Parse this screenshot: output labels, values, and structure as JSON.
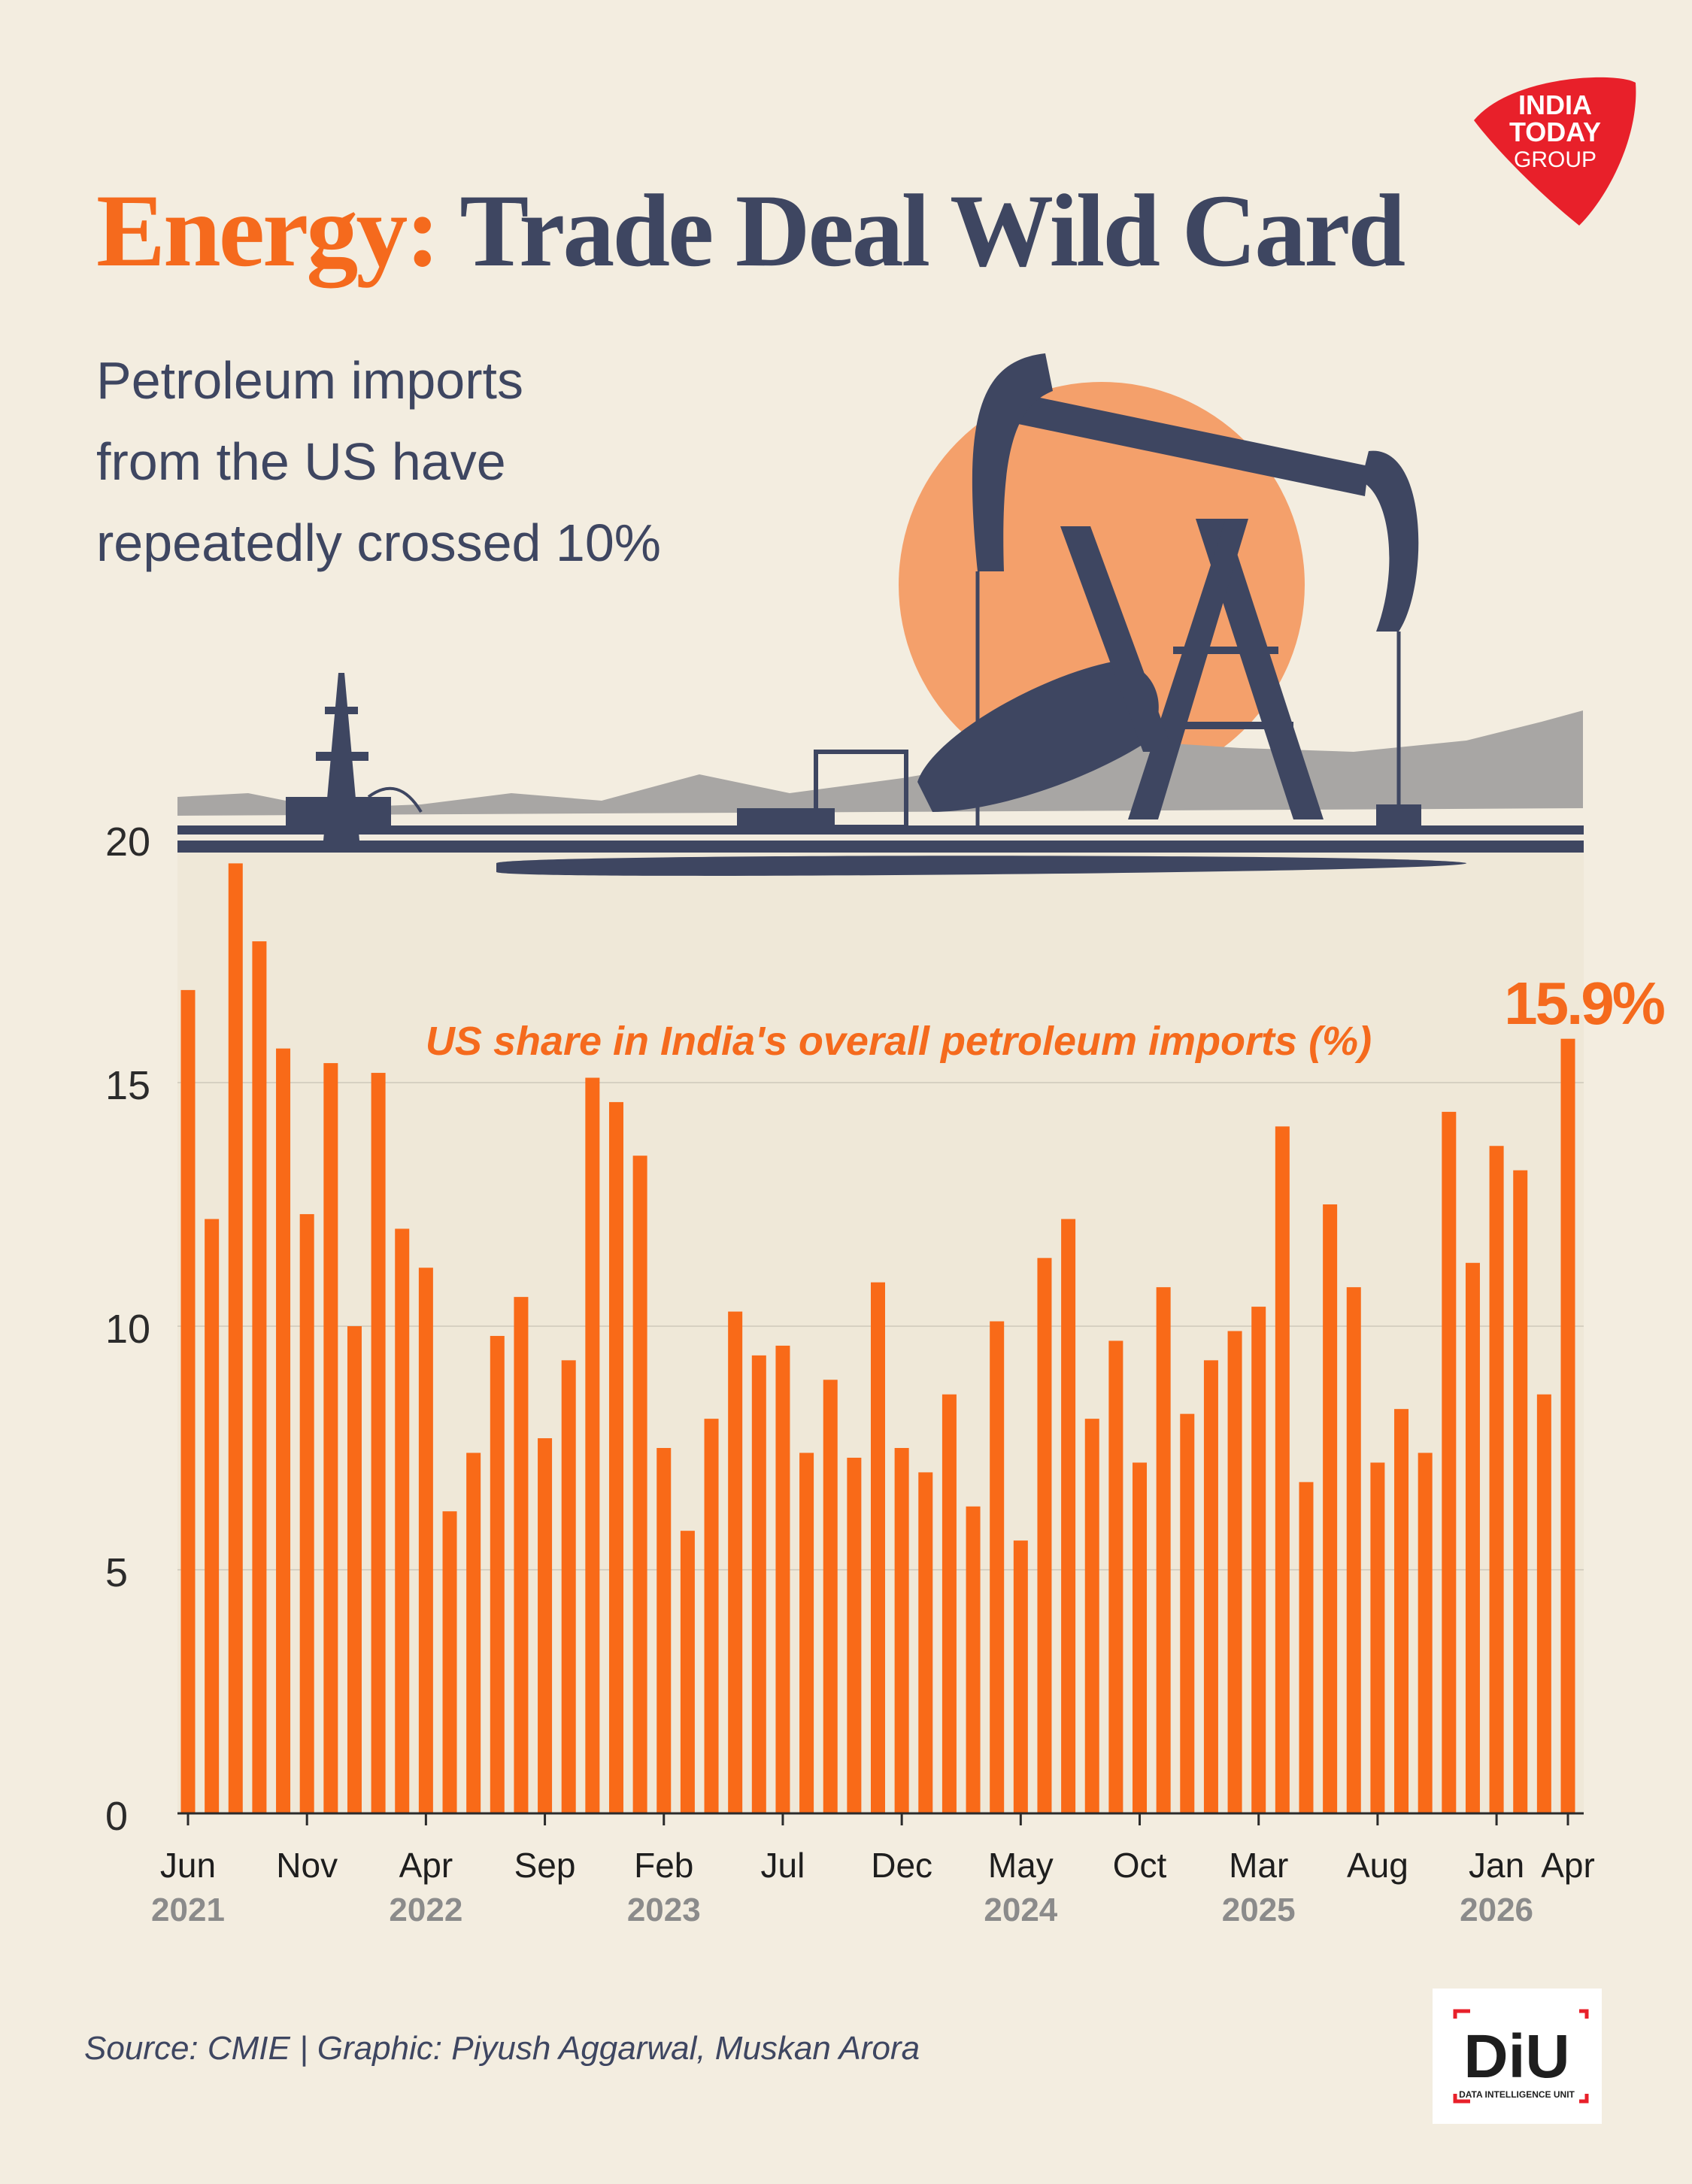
{
  "header": {
    "title_accent": "Energy:",
    "title_rest": "Trade Deal Wild Card",
    "subtitle_lines": [
      "Petroleum imports",
      "from the US have",
      "repeatedly crossed 10%"
    ]
  },
  "brand": {
    "lines": [
      "INDIA",
      "TODAY",
      "GROUP"
    ],
    "color": "#e8202a"
  },
  "footer": {
    "source": "Source: CMIE | Graphic: Piyush Aggarwal, Muskan Arora",
    "logo_text": "DiU",
    "logo_sub": "DATA INTELLIGENCE UNIT"
  },
  "chart_data": {
    "type": "bar",
    "title": "US share in India's overall petroleum imports (%)",
    "ylim": [
      0,
      20
    ],
    "yticks": [
      0,
      5,
      10,
      15,
      20
    ],
    "grid": true,
    "bar_color": "#f96a18",
    "highlight_label": "15.9%",
    "x_labels": [
      {
        "index": 0,
        "month": "Jun",
        "year": "2021"
      },
      {
        "index": 5,
        "month": "Nov",
        "year": ""
      },
      {
        "index": 10,
        "month": "Apr",
        "year": "2022"
      },
      {
        "index": 15,
        "month": "Sep",
        "year": ""
      },
      {
        "index": 20,
        "month": "Feb",
        "year": "2023"
      },
      {
        "index": 25,
        "month": "Jul",
        "year": ""
      },
      {
        "index": 30,
        "month": "Dec",
        "year": ""
      },
      {
        "index": 35,
        "month": "May",
        "year": "2024"
      },
      {
        "index": 40,
        "month": "Oct",
        "year": ""
      },
      {
        "index": 45,
        "month": "Mar",
        "year": "2025"
      },
      {
        "index": 50,
        "month": "Aug",
        "year": ""
      },
      {
        "index": 55,
        "month": "Jan",
        "year": "2026"
      },
      {
        "index": 58,
        "month": "Apr",
        "year": ""
      }
    ],
    "values": [
      16.9,
      12.2,
      19.5,
      17.9,
      15.7,
      12.3,
      15.4,
      10.0,
      15.2,
      12.0,
      11.2,
      6.2,
      7.4,
      9.8,
      10.6,
      7.7,
      9.3,
      15.1,
      14.6,
      13.5,
      7.5,
      5.8,
      8.1,
      10.3,
      9.4,
      9.6,
      7.4,
      8.9,
      7.3,
      10.9,
      7.5,
      7.0,
      8.6,
      6.3,
      10.1,
      5.6,
      11.4,
      12.2,
      8.1,
      9.7,
      7.2,
      10.8,
      8.2,
      9.3,
      9.9,
      10.4,
      14.1,
      6.8,
      12.5,
      10.8,
      7.2,
      8.3,
      7.4,
      14.4,
      11.3,
      13.7,
      13.2,
      8.6,
      15.9
    ]
  }
}
